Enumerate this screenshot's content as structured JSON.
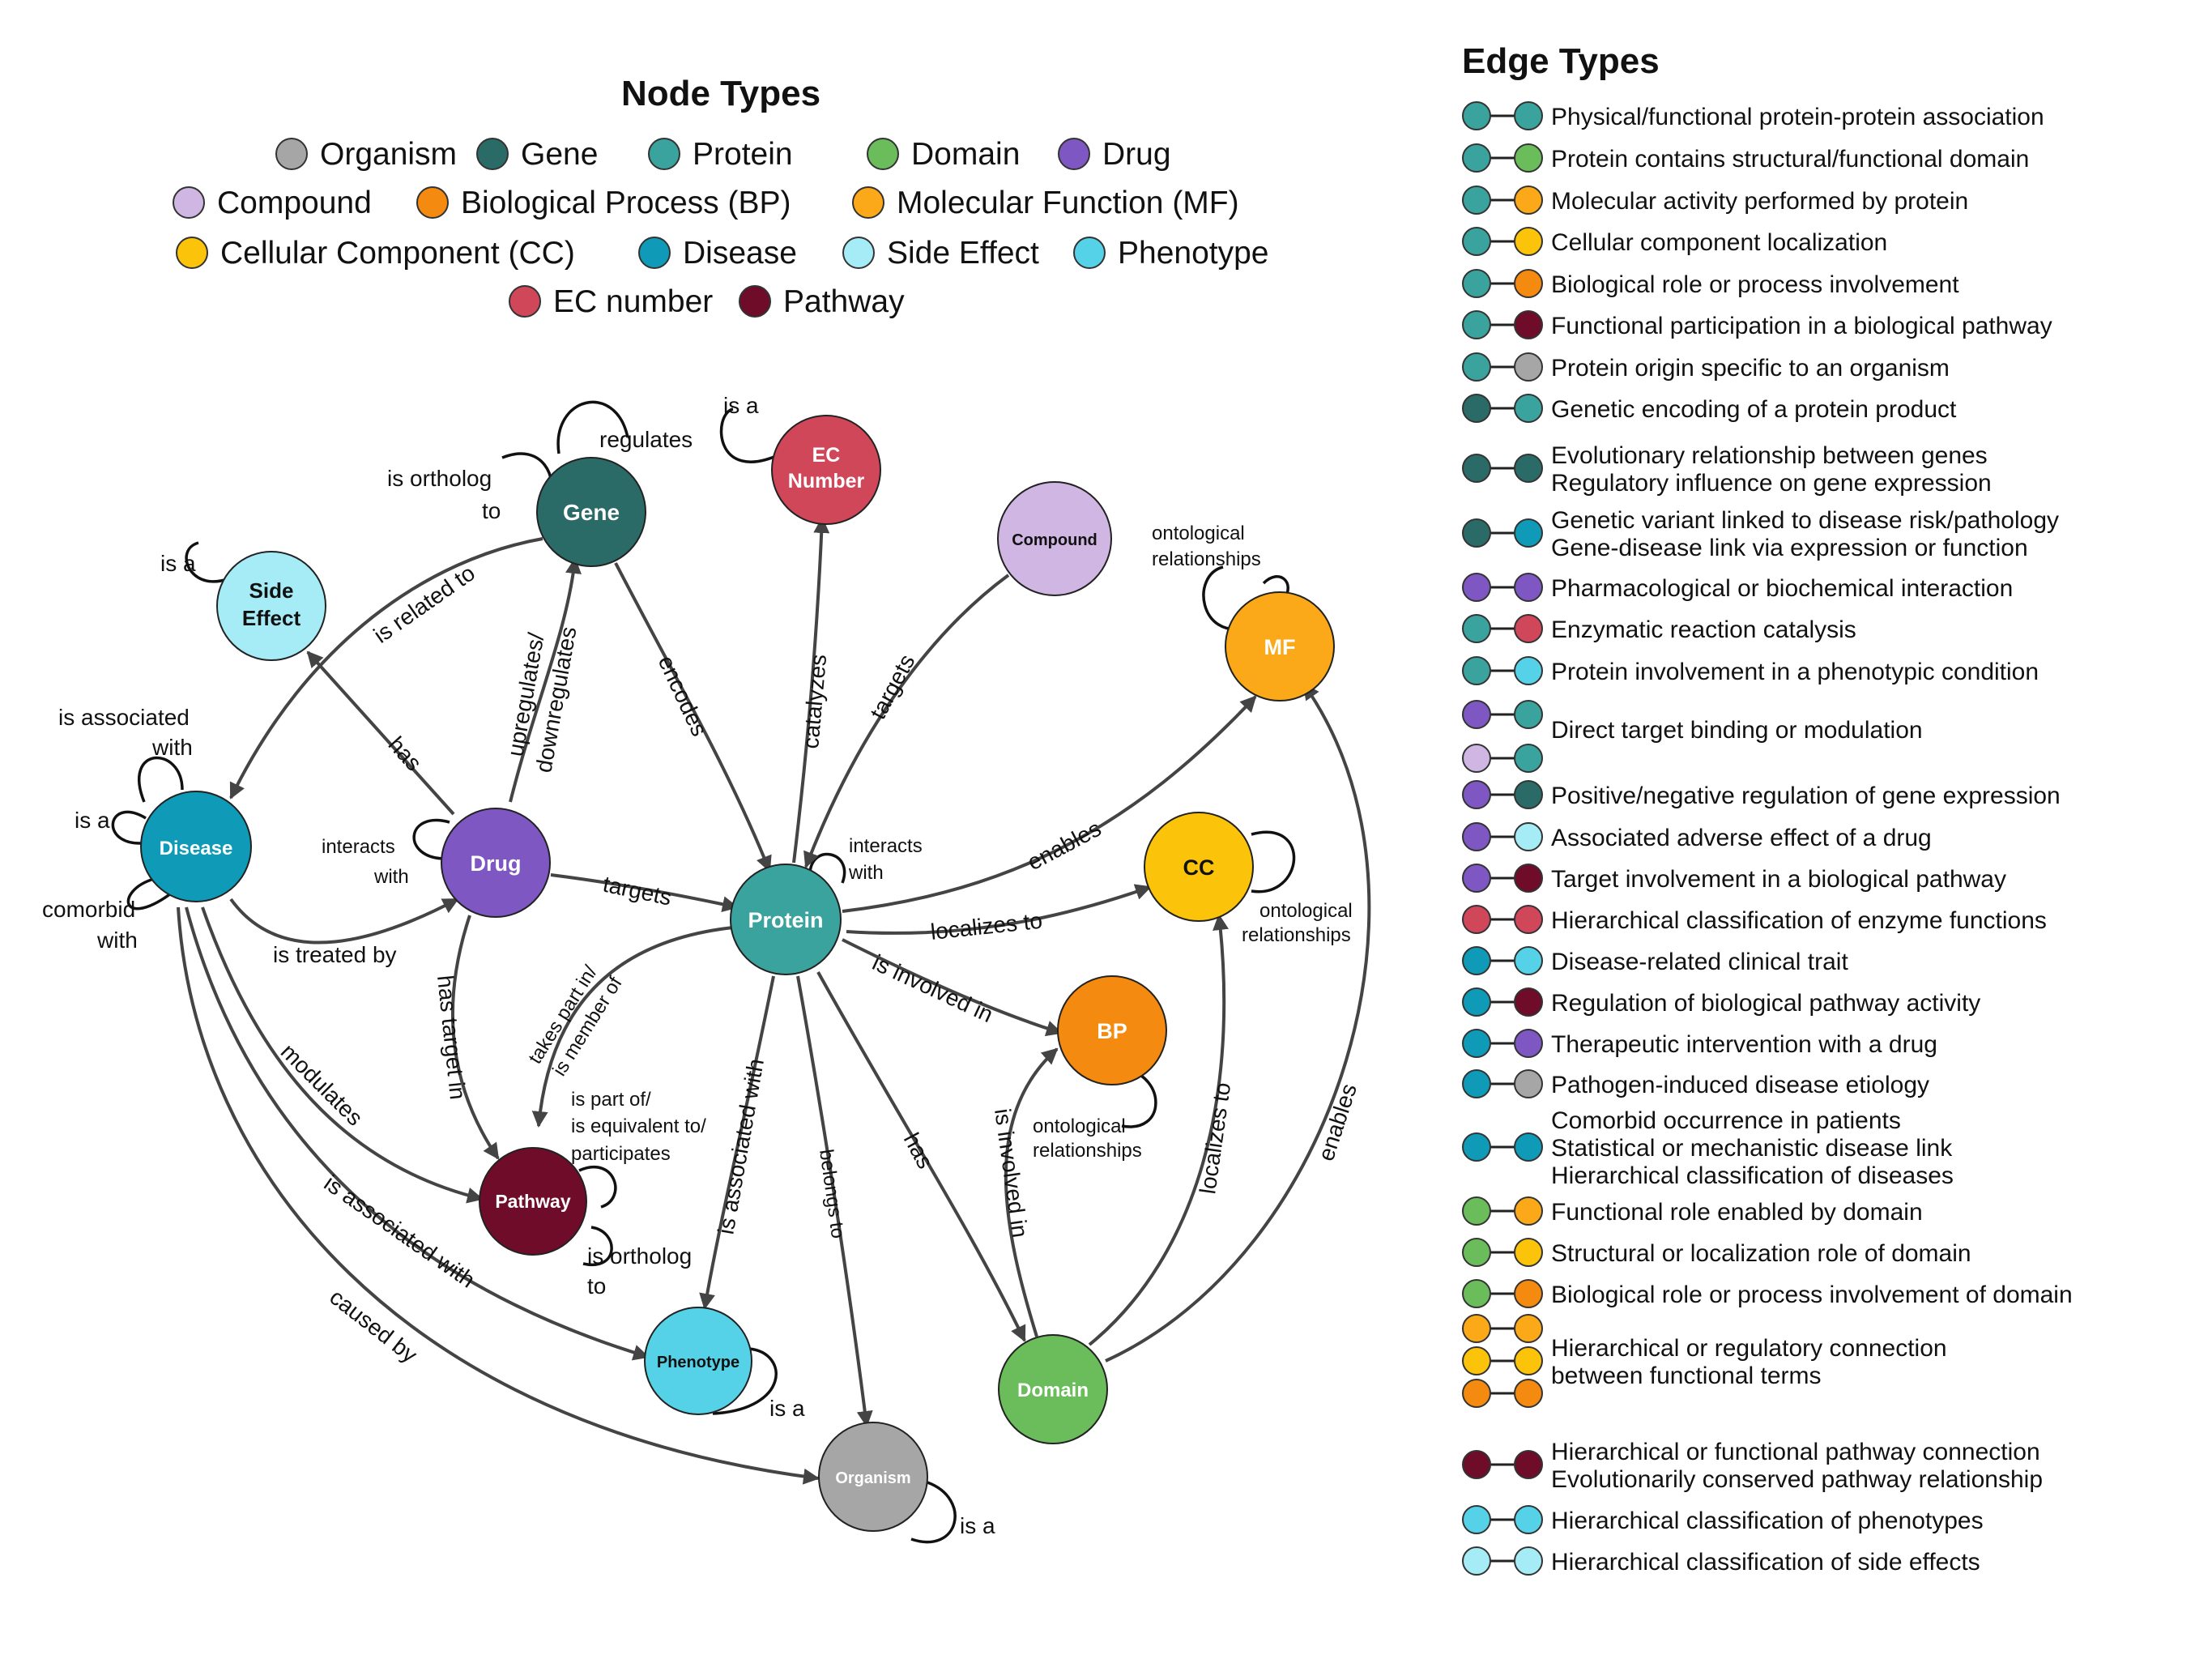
{
  "node_types_title": "Node Types",
  "edge_types_title": "Edge Types",
  "colors": {
    "organism": "#a6a6a6",
    "gene": "#2a6b68",
    "protein": "#3aa39e",
    "domain": "#6abd5a",
    "drug": "#7e57c2",
    "compound": "#cfb6e3",
    "bp": "#f58a10",
    "mf": "#fba919",
    "cc": "#fcc30b",
    "disease": "#0f9bb7",
    "side_effect": "#a5ecf7",
    "phenotype": "#55d2e8",
    "ec": "#d1475a",
    "pathway": "#6e0c2a"
  },
  "node_legend": [
    {
      "label": "Organism",
      "color": "organism"
    },
    {
      "label": "Gene",
      "color": "gene"
    },
    {
      "label": "Protein",
      "color": "protein"
    },
    {
      "label": "Domain",
      "color": "domain"
    },
    {
      "label": "Drug",
      "color": "drug"
    },
    {
      "label": "Compound",
      "color": "compound"
    },
    {
      "label": "Biological Process (BP)",
      "color": "bp"
    },
    {
      "label": "Molecular Function (MF)",
      "color": "mf"
    },
    {
      "label": "Cellular Component (CC)",
      "color": "cc"
    },
    {
      "label": "Disease",
      "color": "disease"
    },
    {
      "label": "Side Effect",
      "color": "side_effect"
    },
    {
      "label": "Phenotype",
      "color": "phenotype"
    },
    {
      "label": "EC number",
      "color": "ec"
    },
    {
      "label": "Pathway",
      "color": "pathway"
    }
  ],
  "nodes": {
    "gene": {
      "label": "Gene"
    },
    "ec": {
      "label1": "EC",
      "label2": "Number"
    },
    "compound": {
      "label": "Compound"
    },
    "side_effect": {
      "label1": "Side",
      "label2": "Effect"
    },
    "mf": {
      "label": "MF"
    },
    "disease": {
      "label": "Disease"
    },
    "drug": {
      "label": "Drug"
    },
    "protein": {
      "label": "Protein"
    },
    "cc": {
      "label": "CC"
    },
    "bp": {
      "label": "BP"
    },
    "pathway": {
      "label": "Pathway"
    },
    "phenotype": {
      "label": "Phenotype"
    },
    "domain": {
      "label": "Domain"
    },
    "organism": {
      "label": "Organism"
    }
  },
  "edge_labels": {
    "gene_regulates": "regulates",
    "gene_ortholog_1": "is ortholog",
    "gene_ortholog_2": "to",
    "ec_is_a": "is a",
    "side_is_a": "is a",
    "mf_onto_1": "ontological",
    "mf_onto_2": "relationships",
    "disease_assoc_1": "is associated",
    "disease_assoc_2": "with",
    "disease_is_a": "is a",
    "disease_comorbid_1": "comorbid",
    "disease_comorbid_2": "with",
    "related_to": "is related to",
    "has": "has",
    "updown_1": "upregulates/",
    "updown_2": "downregulates",
    "encodes": "encodes",
    "catalyzes": "catalyzes",
    "compound_targets": "targets",
    "drug_interacts_1": "interacts",
    "drug_interacts_2": "with",
    "protein_interacts_1": "interacts",
    "protein_interacts_2": "with",
    "drug_targets": "targets",
    "enables": "enables",
    "localizes_to": "localizes to",
    "cc_onto_1": "ontological",
    "cc_onto_2": "relationships",
    "treated_by": "is treated by",
    "has_target_in": "has target in",
    "takes_part_1": "takes part in/",
    "takes_part_2": "is member of",
    "involved_in": "is involved in",
    "bp_onto_1": "ontological",
    "bp_onto_2": "relationships",
    "modulates": "modulates",
    "pathway_part_1": "is part of/",
    "pathway_part_2": "is equivalent to/",
    "pathway_part_3": "participates",
    "pathway_ortholog_1": "is ortholog",
    "pathway_ortholog_2": "to",
    "protein_assoc": "is associated with",
    "belongs_to": "belongs to",
    "protein_has": "has",
    "domain_involved": "is involved in",
    "domain_localizes": "localizes to",
    "domain_enables": "enables",
    "disease_pheno_assoc": "is associated with",
    "caused_by": "caused by",
    "pheno_is_a": "is a",
    "organism_is_a": "is a"
  },
  "edge_types": [
    {
      "colors": [
        "protein",
        "protein"
      ],
      "lines": [
        "Physical/functional protein-protein association"
      ]
    },
    {
      "colors": [
        "protein",
        "domain"
      ],
      "lines": [
        "Protein contains structural/functional domain"
      ]
    },
    {
      "colors": [
        "protein",
        "mf"
      ],
      "lines": [
        "Molecular activity performed by protein"
      ]
    },
    {
      "colors": [
        "protein",
        "cc"
      ],
      "lines": [
        "Cellular component localization"
      ]
    },
    {
      "colors": [
        "protein",
        "bp"
      ],
      "lines": [
        "Biological role or process involvement"
      ]
    },
    {
      "colors": [
        "protein",
        "pathway"
      ],
      "lines": [
        "Functional participation in a biological pathway"
      ]
    },
    {
      "colors": [
        "protein",
        "organism"
      ],
      "lines": [
        "Protein origin specific to an organism"
      ]
    },
    {
      "colors": [
        "gene",
        "protein"
      ],
      "lines": [
        "Genetic encoding of a protein product"
      ]
    },
    {
      "colors": [
        "gene",
        "gene"
      ],
      "lines": [
        "Evolutionary relationship between genes",
        "Regulatory influence on gene expression"
      ]
    },
    {
      "colors": [
        "gene",
        "disease"
      ],
      "lines": [
        "Genetic variant linked to disease risk/pathology",
        "Gene-disease link via expression or function"
      ]
    },
    {
      "colors": [
        "drug",
        "drug"
      ],
      "lines": [
        "Pharmacological or biochemical interaction"
      ]
    },
    {
      "colors": [
        "protein",
        "ec"
      ],
      "lines": [
        "Enzymatic reaction catalysis"
      ]
    },
    {
      "colors": [
        "protein",
        "phenotype"
      ],
      "lines": [
        "Protein involvement in a phenotypic condition"
      ]
    },
    {
      "colors": [
        "drug",
        "protein"
      ],
      "extra": [
        "compound",
        "protein"
      ],
      "lines": [
        "Direct target binding or modulation"
      ]
    },
    {
      "colors": [
        "drug",
        "gene"
      ],
      "lines": [
        "Positive/negative regulation of gene expression"
      ]
    },
    {
      "colors": [
        "drug",
        "side_effect"
      ],
      "lines": [
        "Associated adverse effect of a drug"
      ]
    },
    {
      "colors": [
        "drug",
        "pathway"
      ],
      "lines": [
        "Target involvement in a biological pathway"
      ]
    },
    {
      "colors": [
        "ec",
        "ec"
      ],
      "lines": [
        "Hierarchical classification of enzyme functions"
      ]
    },
    {
      "colors": [
        "disease",
        "phenotype"
      ],
      "lines": [
        "Disease-related clinical trait"
      ]
    },
    {
      "colors": [
        "disease",
        "pathway"
      ],
      "lines": [
        "Regulation of biological pathway activity"
      ]
    },
    {
      "colors": [
        "disease",
        "drug"
      ],
      "lines": [
        "Therapeutic intervention with a drug"
      ]
    },
    {
      "colors": [
        "disease",
        "organism"
      ],
      "lines": [
        "Pathogen-induced disease etiology"
      ]
    },
    {
      "colors": [
        "disease",
        "disease"
      ],
      "lines": [
        "Comorbid occurrence in patients",
        "Statistical or mechanistic disease link",
        "Hierarchical classification of diseases"
      ]
    },
    {
      "colors": [
        "domain",
        "mf"
      ],
      "lines": [
        "Functional role enabled by domain"
      ]
    },
    {
      "colors": [
        "domain",
        "cc"
      ],
      "lines": [
        "Structural or localization role of domain"
      ]
    },
    {
      "colors": [
        "domain",
        "bp"
      ],
      "lines": [
        "Biological role or process involvement of domain"
      ]
    },
    {
      "colors": [
        "mf",
        "mf"
      ],
      "extra": [
        "cc",
        "cc"
      ],
      "extra2": [
        "bp",
        "bp"
      ],
      "lines": [
        "Hierarchical or regulatory connection",
        "between functional terms"
      ]
    },
    {
      "colors": [
        "pathway",
        "pathway"
      ],
      "lines": [
        "Hierarchical or functional pathway connection",
        "Evolutionarily conserved pathway relationship"
      ]
    },
    {
      "colors": [
        "phenotype",
        "phenotype"
      ],
      "lines": [
        "Hierarchical classification of phenotypes"
      ]
    },
    {
      "colors": [
        "side_effect",
        "side_effect"
      ],
      "lines": [
        "Hierarchical classification of side effects"
      ]
    }
  ]
}
